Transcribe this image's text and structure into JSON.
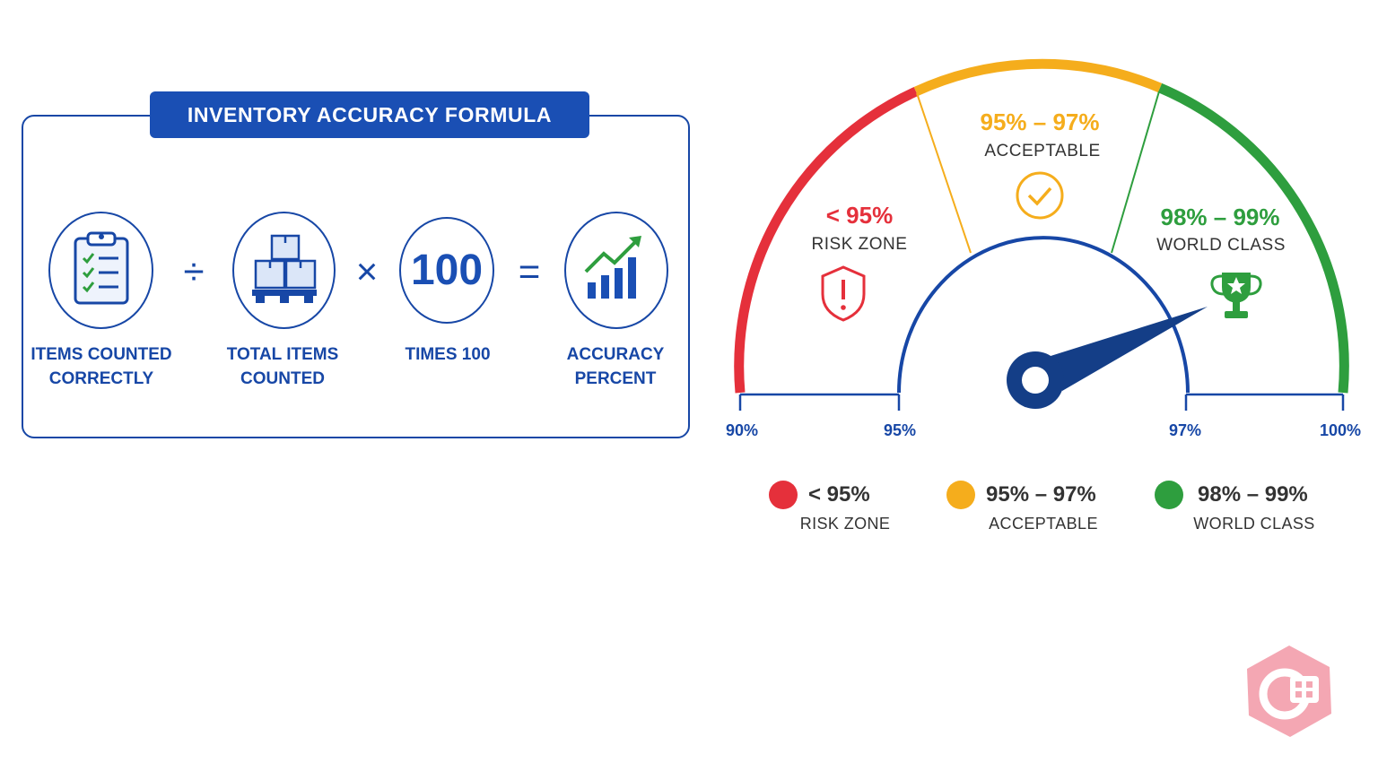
{
  "formula": {
    "title": "INVENTORY ACCURACY FORMULA",
    "steps": [
      {
        "label": "ITEMS COUNTED\nCORRECTLY",
        "icon": "clipboard-checklist-icon"
      },
      {
        "label": "TOTAL ITEMS\nCOUNTED",
        "icon": "boxes-on-pallet-icon"
      },
      {
        "label": "TIMES 100",
        "value": "100"
      },
      {
        "label": "ACCURACY\nPERCENT",
        "icon": "rising-bar-chart-icon"
      }
    ],
    "operators": [
      "÷",
      "×",
      "="
    ]
  },
  "gauge": {
    "tick_labels": [
      "90%",
      "95%",
      "97%",
      "100%"
    ],
    "zones": [
      {
        "range": "< 95%",
        "name": "RISK ZONE",
        "color": "#e5303b",
        "icon": "shield-alert-icon"
      },
      {
        "range": "95% – 97%",
        "name": "ACCEPTABLE",
        "color": "#f5ad1c",
        "icon": "check-circle-icon"
      },
      {
        "range": "98% – 99%",
        "name": "WORLD CLASS",
        "color": "#2e9e3e",
        "icon": "trophy-star-icon"
      }
    ],
    "needle_color": "#143e87",
    "accent": "#1747a6"
  },
  "legend": [
    {
      "range": "< 95%",
      "name": "RISK ZONE",
      "color": "#e5303b"
    },
    {
      "range": "95% – 97%",
      "name": "ACCEPTABLE",
      "color": "#f5ad1c"
    },
    {
      "range": "98% – 99%",
      "name": "WORLD CLASS",
      "color": "#2e9e3e"
    }
  ]
}
